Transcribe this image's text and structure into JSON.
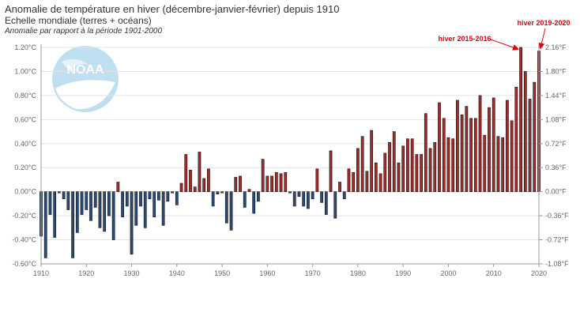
{
  "header": {
    "title": "Anomalie de température en hiver (décembre-janvier-février) depuis 1910",
    "subtitle": "Echelle mondiale (terres + océans)",
    "note": "Anomalie par rapport à la période 1901-2000"
  },
  "logo": {
    "text": "NOAA"
  },
  "colors": {
    "positive": "#a52a2a",
    "negative": "#2b4b7a",
    "annotation": "#e8000b"
  },
  "chart_data": {
    "type": "bar",
    "x": [
      1910,
      1911,
      1912,
      1913,
      1914,
      1915,
      1916,
      1917,
      1918,
      1919,
      1920,
      1921,
      1922,
      1923,
      1924,
      1925,
      1926,
      1927,
      1928,
      1929,
      1930,
      1931,
      1932,
      1933,
      1934,
      1935,
      1936,
      1937,
      1938,
      1939,
      1940,
      1941,
      1942,
      1943,
      1944,
      1945,
      1946,
      1947,
      1948,
      1949,
      1950,
      1951,
      1952,
      1953,
      1954,
      1955,
      1956,
      1957,
      1958,
      1959,
      1960,
      1961,
      1962,
      1963,
      1964,
      1965,
      1966,
      1967,
      1968,
      1969,
      1970,
      1971,
      1972,
      1973,
      1974,
      1975,
      1976,
      1977,
      1978,
      1979,
      1980,
      1981,
      1982,
      1983,
      1984,
      1985,
      1986,
      1987,
      1988,
      1989,
      1990,
      1991,
      1992,
      1993,
      1994,
      1995,
      1996,
      1997,
      1998,
      1999,
      2000,
      2001,
      2002,
      2003,
      2004,
      2005,
      2006,
      2007,
      2008,
      2009,
      2010,
      2011,
      2012,
      2013,
      2014,
      2015,
      2016,
      2017,
      2018,
      2019,
      2020
    ],
    "values": [
      -0.37,
      -0.55,
      -0.19,
      -0.38,
      -0.01,
      -0.06,
      -0.15,
      -0.55,
      -0.34,
      -0.19,
      -0.15,
      -0.24,
      -0.13,
      -0.3,
      -0.33,
      -0.2,
      -0.4,
      0.08,
      -0.21,
      -0.12,
      -0.52,
      -0.28,
      -0.12,
      -0.3,
      -0.06,
      -0.21,
      -0.07,
      -0.28,
      -0.08,
      -0.01,
      -0.11,
      0.07,
      0.31,
      0.18,
      0.04,
      0.33,
      0.11,
      0.19,
      -0.12,
      -0.02,
      -0.01,
      -0.26,
      -0.32,
      0.12,
      0.13,
      -0.13,
      0.02,
      -0.18,
      -0.08,
      0.27,
      0.13,
      0.13,
      0.16,
      0.15,
      0.16,
      -0.01,
      -0.12,
      -0.04,
      -0.12,
      -0.14,
      -0.06,
      0.19,
      -0.09,
      -0.19,
      0.34,
      -0.22,
      0.08,
      -0.06,
      0.19,
      0.16,
      0.36,
      0.46,
      0.17,
      0.51,
      0.24,
      0.15,
      0.32,
      0.41,
      0.5,
      0.24,
      0.38,
      0.44,
      0.44,
      0.31,
      0.31,
      0.65,
      0.36,
      0.41,
      0.74,
      0.61,
      0.45,
      0.44,
      0.76,
      0.64,
      0.71,
      0.61,
      0.61,
      0.8,
      0.47,
      0.7,
      0.78,
      0.46,
      0.45,
      0.76,
      0.59,
      0.87,
      1.2,
      1.0,
      0.77,
      0.91,
      1.17
    ],
    "ylabel_left_ticks": [
      "1.20°C",
      "1.00°C",
      "0.80°C",
      "0.60°C",
      "0.40°C",
      "0.20°C",
      "0.00°C",
      "-0.20°C",
      "-0.40°C",
      "-0.60°C"
    ],
    "ylabel_right_ticks": [
      "2.16°F",
      "1.80°F",
      "1.44°F",
      "1.08°F",
      "0.72°F",
      "0.36°F",
      "0.00°F",
      "-0.36°F",
      "-0.72°F",
      "-1.08°F"
    ],
    "xticks": [
      "1910",
      "1920",
      "1930",
      "1940",
      "1950",
      "1960",
      "1970",
      "1980",
      "1990",
      "2000",
      "2010",
      "2020"
    ],
    "ylim": [
      -0.6,
      1.2
    ],
    "xlim": [
      1910,
      2020
    ],
    "grid": true,
    "annotations": [
      {
        "text": "hiver 2015-2016",
        "x": 2016,
        "y": 1.2
      },
      {
        "text": "hiver 2019-2020",
        "x": 2020,
        "y": 1.17
      }
    ]
  }
}
